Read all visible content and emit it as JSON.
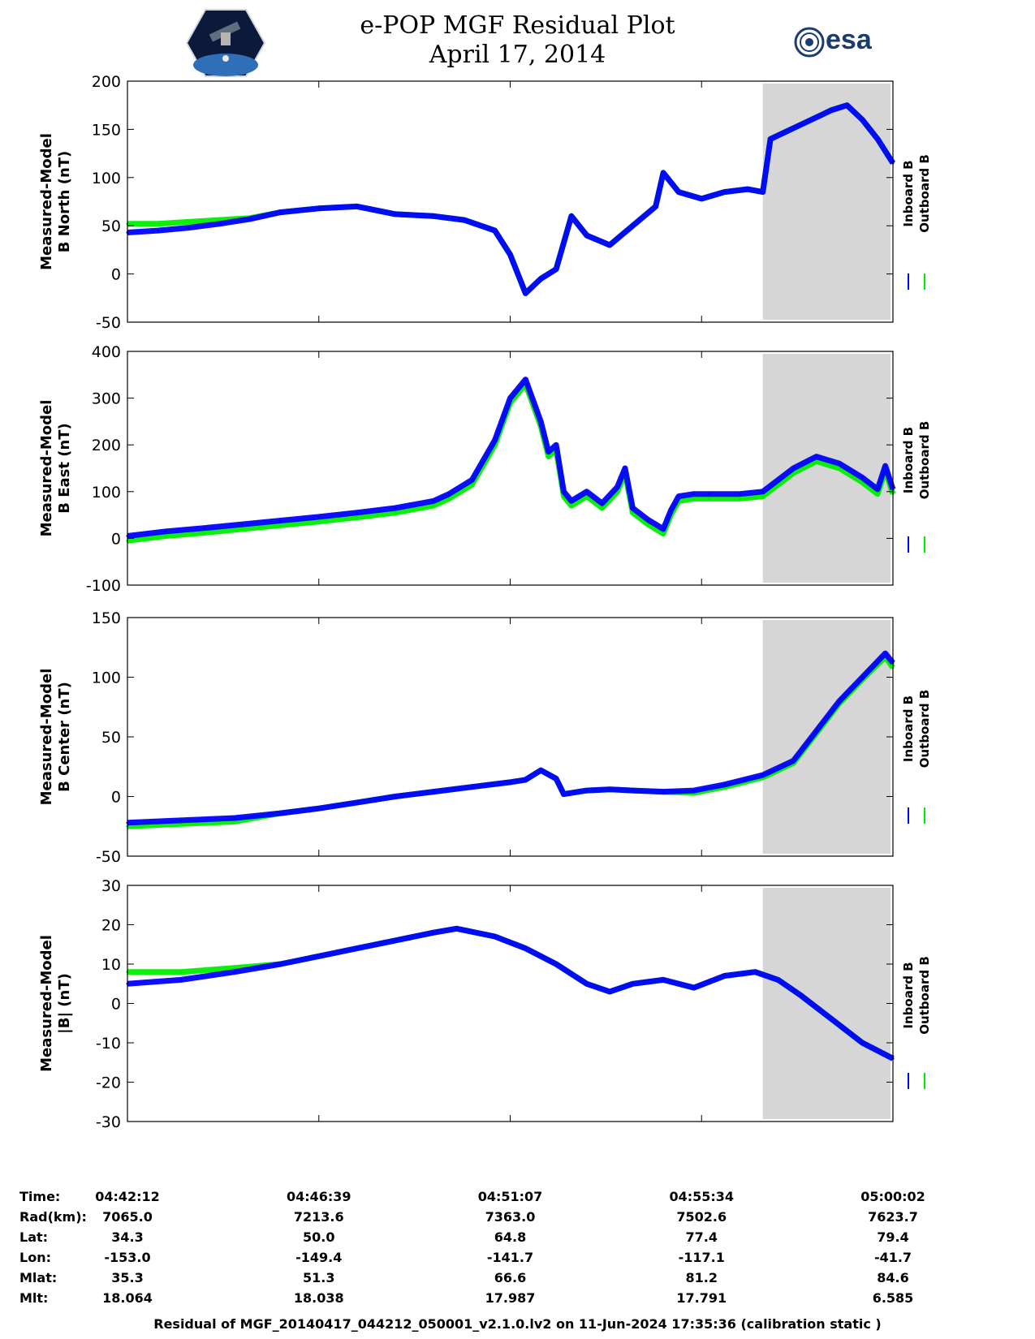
{
  "header": {
    "title": "e-POP MGF Residual Plot",
    "date": "April 17, 2014",
    "esa_logo_text": "esa"
  },
  "colors": {
    "inboard": "#0000ff",
    "outboard": "#00ee00",
    "shade": "#d6d6d6"
  },
  "legend": {
    "inboard": "Inboard B",
    "outboard": "Outboard B"
  },
  "chart_data": [
    {
      "type": "line",
      "ylabel_lines": [
        "Measured-Model",
        "B North (nT)"
      ],
      "ylim": [
        -50,
        200
      ],
      "yticks": [
        -50,
        0,
        50,
        100,
        150,
        200
      ],
      "shaded_from_fraction": 0.83,
      "x_fraction": [
        0,
        0.04,
        0.08,
        0.12,
        0.16,
        0.2,
        0.25,
        0.3,
        0.35,
        0.4,
        0.44,
        0.48,
        0.5,
        0.52,
        0.54,
        0.56,
        0.58,
        0.6,
        0.63,
        0.66,
        0.69,
        0.7,
        0.72,
        0.75,
        0.78,
        0.81,
        0.83,
        0.84,
        0.88,
        0.92,
        0.94,
        0.96,
        0.98,
        1.0
      ],
      "series": [
        {
          "name": "Inboard B",
          "values": [
            43,
            45,
            48,
            52,
            57,
            64,
            68,
            70,
            62,
            60,
            56,
            45,
            20,
            -20,
            -5,
            5,
            60,
            40,
            30,
            50,
            70,
            105,
            85,
            78,
            85,
            88,
            85,
            140,
            155,
            170,
            175,
            160,
            140,
            115
          ]
        },
        {
          "name": "Outboard B",
          "values": [
            52,
            52,
            54,
            56,
            58,
            64,
            68,
            70,
            62,
            60,
            56,
            45,
            20,
            -20,
            -5,
            5,
            60,
            40,
            30,
            50,
            70,
            105,
            85,
            78,
            85,
            88,
            85,
            140,
            155,
            170,
            175,
            160,
            140,
            115
          ]
        }
      ]
    },
    {
      "type": "line",
      "ylabel_lines": [
        "Measured-Model",
        "B East (nT)"
      ],
      "ylim": [
        -100,
        400
      ],
      "yticks": [
        -100,
        0,
        100,
        200,
        300,
        400
      ],
      "shaded_from_fraction": 0.83,
      "x_fraction": [
        0,
        0.05,
        0.1,
        0.15,
        0.2,
        0.25,
        0.3,
        0.35,
        0.4,
        0.42,
        0.45,
        0.48,
        0.5,
        0.52,
        0.54,
        0.55,
        0.56,
        0.57,
        0.58,
        0.6,
        0.62,
        0.64,
        0.65,
        0.66,
        0.68,
        0.7,
        0.71,
        0.72,
        0.74,
        0.76,
        0.8,
        0.83,
        0.87,
        0.9,
        0.93,
        0.96,
        0.98,
        0.99,
        1.0
      ],
      "series": [
        {
          "name": "Inboard B",
          "values": [
            5,
            15,
            22,
            30,
            38,
            46,
            55,
            65,
            80,
            95,
            125,
            210,
            300,
            340,
            250,
            185,
            200,
            100,
            80,
            100,
            75,
            110,
            150,
            65,
            40,
            20,
            60,
            90,
            95,
            95,
            95,
            100,
            150,
            175,
            160,
            130,
            105,
            155,
            105
          ]
        },
        {
          "name": "Outboard B",
          "values": [
            -5,
            5,
            12,
            20,
            28,
            36,
            45,
            55,
            70,
            85,
            115,
            200,
            290,
            330,
            240,
            175,
            190,
            90,
            70,
            90,
            65,
            100,
            140,
            55,
            30,
            10,
            50,
            80,
            85,
            85,
            85,
            90,
            140,
            165,
            150,
            120,
            95,
            145,
            95
          ]
        }
      ]
    },
    {
      "type": "line",
      "ylabel_lines": [
        "Measured-Model",
        "B Center (nT)"
      ],
      "ylim": [
        -50,
        150
      ],
      "yticks": [
        -50,
        0,
        50,
        100,
        150
      ],
      "shaded_from_fraction": 0.83,
      "x_fraction": [
        0,
        0.07,
        0.14,
        0.2,
        0.25,
        0.3,
        0.35,
        0.4,
        0.45,
        0.5,
        0.52,
        0.54,
        0.56,
        0.57,
        0.6,
        0.63,
        0.66,
        0.7,
        0.74,
        0.78,
        0.83,
        0.87,
        0.9,
        0.93,
        0.96,
        0.99,
        1.0
      ],
      "series": [
        {
          "name": "Inboard B",
          "values": [
            -22,
            -20,
            -18,
            -14,
            -10,
            -5,
            0,
            4,
            8,
            12,
            14,
            22,
            15,
            2,
            5,
            6,
            5,
            4,
            5,
            10,
            18,
            30,
            55,
            80,
            100,
            120,
            112
          ]
        },
        {
          "name": "Outboard B",
          "values": [
            -25,
            -23,
            -21,
            -14,
            -10,
            -5,
            0,
            4,
            8,
            12,
            14,
            22,
            15,
            2,
            5,
            6,
            5,
            4,
            3,
            8,
            16,
            28,
            53,
            78,
            98,
            117,
            108
          ]
        }
      ]
    },
    {
      "type": "line",
      "ylabel_lines": [
        "Measured-Model",
        "|B| (nT)"
      ],
      "ylim": [
        -30,
        30
      ],
      "yticks": [
        -30,
        -20,
        -10,
        0,
        10,
        20,
        30
      ],
      "shaded_from_fraction": 0.83,
      "x_fraction": [
        0,
        0.07,
        0.14,
        0.2,
        0.25,
        0.3,
        0.35,
        0.4,
        0.43,
        0.48,
        0.52,
        0.56,
        0.6,
        0.63,
        0.66,
        0.7,
        0.74,
        0.78,
        0.82,
        0.85,
        0.88,
        0.92,
        0.96,
        1.0
      ],
      "series": [
        {
          "name": "Inboard B",
          "values": [
            5,
            6,
            8,
            10,
            12,
            14,
            16,
            18,
            19,
            17,
            14,
            10,
            5,
            3,
            5,
            6,
            4,
            7,
            8,
            6,
            2,
            -4,
            -10,
            -14
          ]
        },
        {
          "name": "Outboard B",
          "values": [
            8,
            8,
            9,
            10,
            12,
            14,
            16,
            18,
            19,
            17,
            14,
            10,
            5,
            3,
            5,
            6,
            4,
            7,
            8,
            6,
            2,
            -4,
            -10,
            -14
          ]
        }
      ]
    }
  ],
  "footer": {
    "row_labels": [
      "Time:",
      "Rad(km):",
      "Lat:",
      "Lon:",
      "Mlat:",
      "Mlt:"
    ],
    "columns": [
      {
        "Time": "04:42:12",
        "Rad": "7065.0",
        "Lat": "34.3",
        "Lon": "-153.0",
        "Mlat": "35.3",
        "Mlt": "18.064"
      },
      {
        "Time": "04:46:39",
        "Rad": "7213.6",
        "Lat": "50.0",
        "Lon": "-149.4",
        "Mlat": "51.3",
        "Mlt": "18.038"
      },
      {
        "Time": "04:51:07",
        "Rad": "7363.0",
        "Lat": "64.8",
        "Lon": "-141.7",
        "Mlat": "66.6",
        "Mlt": "17.987"
      },
      {
        "Time": "04:55:34",
        "Rad": "7502.6",
        "Lat": "77.4",
        "Lon": "-117.1",
        "Mlat": "81.2",
        "Mlt": "17.791"
      },
      {
        "Time": "05:00:02",
        "Rad": "7623.7",
        "Lat": "79.4",
        "Lon": "-41.7",
        "Mlat": "84.6",
        "Mlt": "6.585"
      }
    ],
    "caption": "Residual of MGF_20140417_044212_050001_v2.1.0.lv2 on 11-Jun-2024 17:35:36 (calibration static )"
  }
}
